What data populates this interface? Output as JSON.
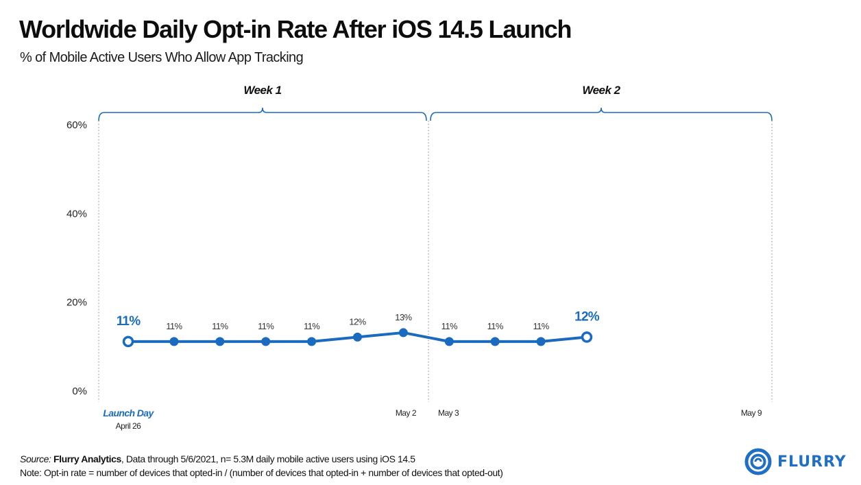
{
  "header": {
    "title": "Worldwide Daily Opt-in Rate After iOS 14.5 Launch",
    "subtitle": "% of Mobile Active Users Who Allow App Tracking"
  },
  "colors": {
    "accent": "#1a6bbf",
    "text": "#111111",
    "gridline": "#b0b0b0"
  },
  "chart_data": {
    "type": "line",
    "title": "Worldwide Daily Opt-in Rate After iOS 14.5 Launch",
    "subtitle": "% of Mobile Active Users Who Allow App Tracking",
    "xlabel": "",
    "ylabel": "",
    "ylim": [
      0,
      60
    ],
    "yticks": [
      0,
      20,
      40,
      60
    ],
    "ytick_labels": [
      "0%",
      "20%",
      "40%",
      "60%"
    ],
    "grid": false,
    "x_days": [
      0,
      1,
      2,
      3,
      4,
      5,
      6,
      7,
      8,
      9,
      10
    ],
    "series": [
      {
        "name": "Opt-in rate",
        "values": [
          11,
          11,
          11,
          11,
          11,
          12,
          13,
          11,
          11,
          11,
          12
        ],
        "labels": [
          "11%",
          "11%",
          "11%",
          "11%",
          "11%",
          "12%",
          "13%",
          "11%",
          "11%",
          "11%",
          "12%"
        ],
        "highlight": [
          0,
          10
        ]
      }
    ],
    "groups": [
      {
        "label": "Week 1",
        "start_day": 0,
        "end_day": 7
      },
      {
        "label": "Week 2",
        "start_day": 7,
        "end_day": 14
      }
    ],
    "x_annotations": [
      {
        "label": "Launch Day",
        "sub": "April 26",
        "day": 0
      },
      {
        "label": "May 2",
        "day": 6
      },
      {
        "label": "May 3",
        "day": 7
      },
      {
        "label": "May 9",
        "day": 13
      }
    ]
  },
  "footer": {
    "source_prefix": "Source:",
    "source_name": "Flurry Analytics",
    "source_rest": ", Data through 5/6/2021, n= 5.3M daily mobile active users using iOS 14.5",
    "note": "Note: Opt-in rate = number of devices that opted-in / (number of devices that opted-in + number of devices that opted-out)"
  },
  "logo": {
    "text": "FLURRY",
    "icon": "flurry-swirl-icon"
  }
}
